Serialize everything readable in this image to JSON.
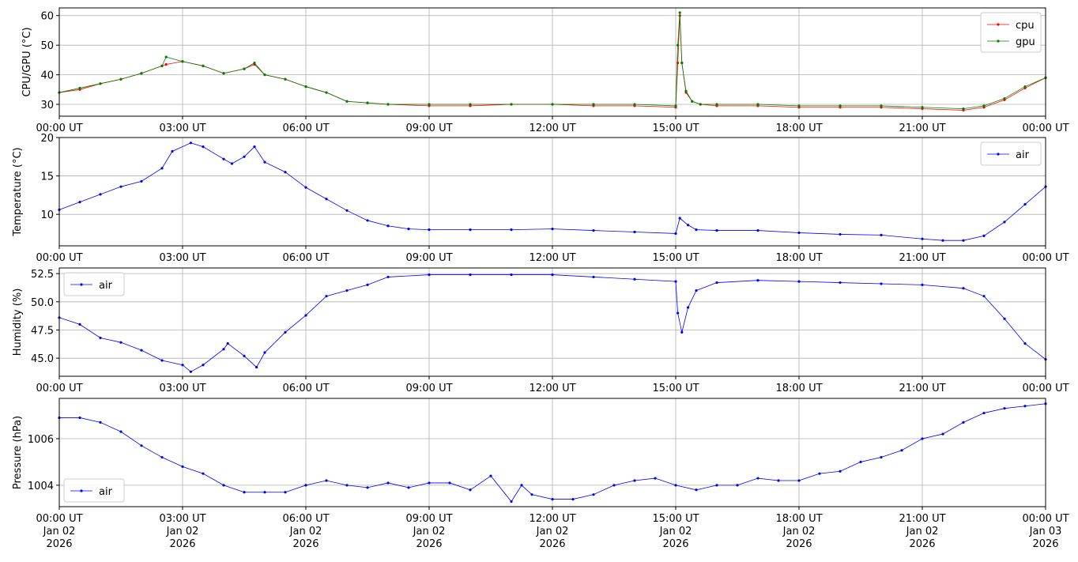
{
  "chart_data": [
    {
      "type": "line",
      "ylabel": "CPU/GPU (°C)",
      "legend": "upper right",
      "grid": true,
      "xlim": [
        0,
        24
      ],
      "ylim": [
        26,
        62.6
      ],
      "yticks": [
        30,
        40,
        50,
        60
      ],
      "xticks": [
        {
          "value": 0,
          "label": "00:00 UT"
        },
        {
          "value": 3,
          "label": "03:00 UT"
        },
        {
          "value": 6,
          "label": "06:00 UT"
        },
        {
          "value": 9,
          "label": "09:00 UT"
        },
        {
          "value": 12,
          "label": "12:00 UT"
        },
        {
          "value": 15,
          "label": "15:00 UT"
        },
        {
          "value": 18,
          "label": "18:00 UT"
        },
        {
          "value": 21,
          "label": "21:00 UT"
        },
        {
          "value": 24,
          "label": "00:00 UT"
        }
      ],
      "x": [
        0,
        0.5,
        1,
        1.5,
        2,
        2.5,
        2.6,
        3,
        3.5,
        4,
        4.5,
        4.75,
        5,
        5.5,
        6,
        6.5,
        7,
        7.5,
        8,
        9,
        10,
        11,
        12,
        13,
        14,
        15,
        15.05,
        15.1,
        15.15,
        15.25,
        15.4,
        15.6,
        16,
        17,
        18,
        19,
        20,
        21,
        22,
        22.5,
        23,
        23.5,
        24
      ],
      "series": [
        {
          "name": "cpu",
          "color": "#ff0000",
          "values": [
            34,
            35,
            37,
            38.5,
            40.5,
            43,
            43.5,
            44.5,
            43,
            40.5,
            42,
            43.5,
            40,
            38.5,
            36,
            34,
            31,
            30.5,
            30,
            29.5,
            29.5,
            30,
            30,
            29.5,
            29.5,
            29,
            44,
            60,
            44,
            34,
            31,
            30,
            29.5,
            29.5,
            29,
            29,
            29,
            28.5,
            28,
            29,
            31.5,
            35.5,
            39
          ]
        },
        {
          "name": "gpu",
          "color": "#008000",
          "values": [
            34,
            35.5,
            37,
            38.5,
            40.5,
            43,
            46,
            44.5,
            43,
            40.5,
            42,
            44,
            40,
            38.5,
            36,
            34,
            31,
            30.5,
            30,
            30,
            30,
            30,
            30,
            30,
            30,
            29.5,
            50,
            61,
            44,
            34.5,
            31,
            30,
            30,
            30,
            29.5,
            29.5,
            29.5,
            29,
            28.5,
            29.5,
            32,
            36,
            39
          ]
        }
      ]
    },
    {
      "type": "line",
      "ylabel": "Temperature (°C)",
      "legend": "upper right",
      "grid": true,
      "xlim": [
        0,
        24
      ],
      "ylim": [
        5.9,
        20
      ],
      "yticks": [
        10,
        15,
        20
      ],
      "xticks": [
        {
          "value": 0,
          "label": "00:00 UT"
        },
        {
          "value": 3,
          "label": "03:00 UT"
        },
        {
          "value": 6,
          "label": "06:00 UT"
        },
        {
          "value": 9,
          "label": "09:00 UT"
        },
        {
          "value": 12,
          "label": "12:00 UT"
        },
        {
          "value": 15,
          "label": "15:00 UT"
        },
        {
          "value": 18,
          "label": "18:00 UT"
        },
        {
          "value": 21,
          "label": "21:00 UT"
        },
        {
          "value": 24,
          "label": "00:00 UT"
        }
      ],
      "x": [
        0,
        0.5,
        1,
        1.5,
        2,
        2.5,
        2.75,
        3.2,
        3.5,
        4,
        4.2,
        4.5,
        4.75,
        5,
        5.5,
        6,
        6.5,
        7,
        7.5,
        8,
        8.5,
        9,
        10,
        11,
        12,
        13,
        14,
        15,
        15.1,
        15.3,
        15.5,
        16,
        17,
        18,
        19,
        20,
        21,
        21.5,
        22,
        22.5,
        23,
        23.5,
        24
      ],
      "series": [
        {
          "name": "air",
          "color": "#0000ff",
          "values": [
            10.6,
            11.6,
            12.6,
            13.6,
            14.3,
            16.0,
            18.2,
            19.3,
            18.8,
            17.2,
            16.6,
            17.5,
            18.8,
            16.8,
            15.5,
            13.5,
            12,
            10.5,
            9.2,
            8.5,
            8.1,
            8.0,
            8.0,
            8.0,
            8.1,
            7.9,
            7.7,
            7.5,
            9.5,
            8.6,
            8.0,
            7.9,
            7.9,
            7.6,
            7.4,
            7.3,
            6.8,
            6.6,
            6.6,
            7.2,
            9.0,
            11.3,
            13.6
          ]
        }
      ]
    },
    {
      "type": "line",
      "ylabel": "Humidity (%)",
      "legend": "upper left",
      "grid": true,
      "xlim": [
        0,
        24
      ],
      "ylim": [
        43.4,
        53.0
      ],
      "yticks": [
        {
          "value": 45,
          "label": "45.0"
        },
        {
          "value": 47.5,
          "label": "47.5"
        },
        {
          "value": 50,
          "label": "50.0"
        },
        {
          "value": 52.5,
          "label": "52.5"
        }
      ],
      "xticks": [
        {
          "value": 0,
          "label": "00:00 UT"
        },
        {
          "value": 3,
          "label": "03:00 UT"
        },
        {
          "value": 6,
          "label": "06:00 UT"
        },
        {
          "value": 9,
          "label": "09:00 UT"
        },
        {
          "value": 12,
          "label": "12:00 UT"
        },
        {
          "value": 15,
          "label": "15:00 UT"
        },
        {
          "value": 18,
          "label": "18:00 UT"
        },
        {
          "value": 21,
          "label": "21:00 UT"
        },
        {
          "value": 24,
          "label": "00:00 UT"
        }
      ],
      "x": [
        0,
        0.5,
        1,
        1.5,
        2,
        2.5,
        3,
        3.2,
        3.5,
        4,
        4.1,
        4.5,
        4.8,
        5,
        5.5,
        6,
        6.5,
        7,
        7.5,
        8,
        9,
        10,
        11,
        12,
        13,
        14,
        15,
        15.05,
        15.15,
        15.3,
        15.5,
        16,
        17,
        18,
        19,
        20,
        21,
        22,
        22.5,
        23,
        23.5,
        24
      ],
      "series": [
        {
          "name": "air",
          "color": "#0000ff",
          "values": [
            48.6,
            48,
            46.8,
            46.4,
            45.7,
            44.8,
            44.4,
            43.8,
            44.4,
            45.8,
            46.3,
            45.2,
            44.2,
            45.5,
            47.3,
            48.8,
            50.5,
            51,
            51.5,
            52.2,
            52.4,
            52.4,
            52.4,
            52.4,
            52.2,
            52,
            51.8,
            49,
            47.3,
            49.5,
            51,
            51.7,
            51.9,
            51.8,
            51.7,
            51.6,
            51.5,
            51.2,
            50.5,
            48.5,
            46.3,
            44.9
          ]
        }
      ]
    },
    {
      "type": "line",
      "ylabel": "Pressure (hPa)",
      "legend": "lower left",
      "grid": true,
      "xlim": [
        0,
        24
      ],
      "ylim": [
        1003.08,
        1007.73
      ],
      "yticks": [
        1004,
        1006
      ],
      "xticks": [
        {
          "value": 0,
          "label": "00:00 UT\nJan 02\n2026"
        },
        {
          "value": 3,
          "label": "03:00 UT\nJan 02\n2026"
        },
        {
          "value": 6,
          "label": "06:00 UT\nJan 02\n2026"
        },
        {
          "value": 9,
          "label": "09:00 UT\nJan 02\n2026"
        },
        {
          "value": 12,
          "label": "12:00 UT\nJan 02\n2026"
        },
        {
          "value": 15,
          "label": "15:00 UT\nJan 02\n2026"
        },
        {
          "value": 18,
          "label": "18:00 UT\nJan 02\n2026"
        },
        {
          "value": 21,
          "label": "21:00 UT\nJan 02\n2026"
        },
        {
          "value": 24,
          "label": "00:00 UT\nJan 03\n2026"
        }
      ],
      "x": [
        0,
        0.5,
        1,
        1.5,
        2,
        2.5,
        3,
        3.5,
        4,
        4.5,
        5,
        5.5,
        6,
        6.5,
        7,
        7.5,
        8,
        8.5,
        9,
        9.5,
        10,
        10.5,
        11,
        11.25,
        11.5,
        12,
        12.5,
        13,
        13.5,
        14,
        14.5,
        15,
        15.5,
        16,
        16.5,
        17,
        17.5,
        18,
        18.5,
        19,
        19.5,
        20,
        20.5,
        21,
        21.5,
        22,
        22.5,
        23,
        23.5,
        24
      ],
      "series": [
        {
          "name": "air",
          "color": "#0000ff",
          "values": [
            1006.9,
            1006.9,
            1006.7,
            1006.3,
            1005.7,
            1005.2,
            1004.8,
            1004.5,
            1004.0,
            1003.7,
            1003.7,
            1003.7,
            1004.0,
            1004.2,
            1004.0,
            1003.9,
            1004.1,
            1003.9,
            1004.1,
            1004.1,
            1003.8,
            1004.4,
            1003.3,
            1004.0,
            1003.6,
            1003.4,
            1003.4,
            1003.6,
            1004.0,
            1004.2,
            1004.3,
            1004.0,
            1003.8,
            1004.0,
            1004.0,
            1004.3,
            1004.2,
            1004.2,
            1004.5,
            1004.6,
            1005.0,
            1005.2,
            1005.5,
            1006.0,
            1006.2,
            1006.7,
            1007.1,
            1007.3,
            1007.4,
            1007.5
          ]
        }
      ]
    }
  ]
}
